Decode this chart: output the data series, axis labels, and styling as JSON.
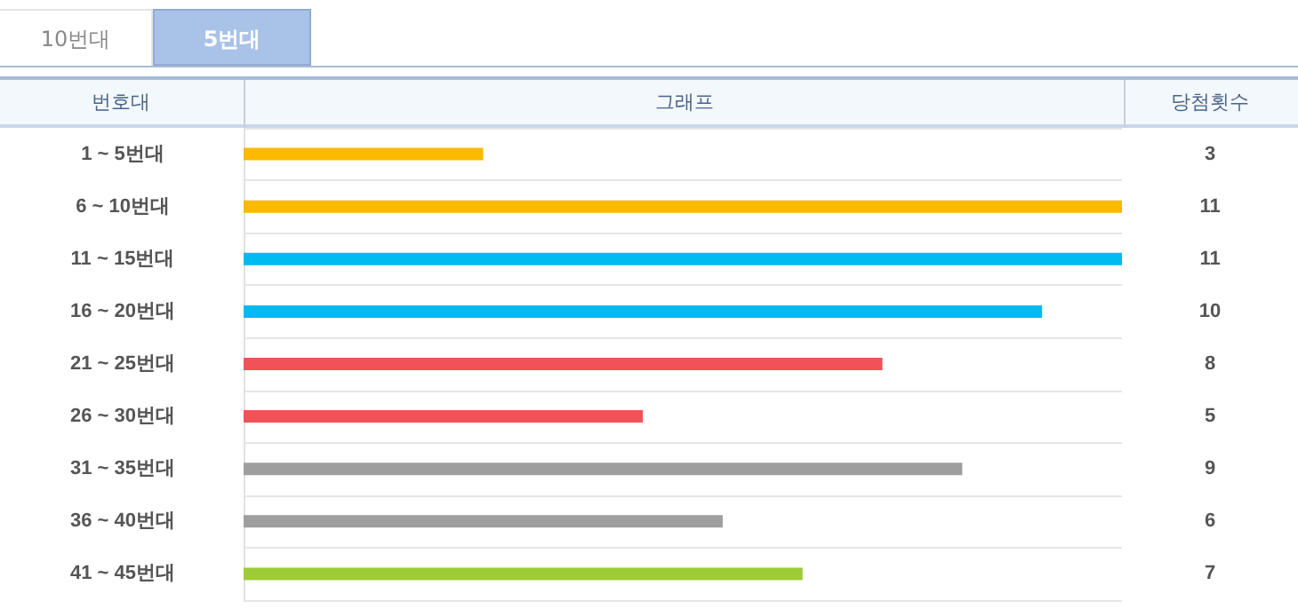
{
  "chart_data": {
    "type": "bar",
    "orientation": "horizontal",
    "title": "그래프",
    "ylabel": "번호대",
    "xlabel": "당첨횟수",
    "annotations": [
      "10번대",
      "5번대"
    ],
    "categories": [
      "1 ~ 5번대",
      "6 ~ 10번대",
      "11 ~ 15번대",
      "16 ~ 20번대",
      "21 ~ 25번대",
      "26 ~ 30번대",
      "31 ~ 35번대",
      "36 ~ 40번대",
      "41 ~ 45번대"
    ],
    "values": [
      3,
      11,
      11,
      10,
      8,
      5,
      9,
      6,
      7
    ],
    "colors": [
      "#fbb900",
      "#fbb900",
      "#00bbf0",
      "#00bbf0",
      "#f05258",
      "#f05258",
      "#9e9e9e",
      "#9e9e9e",
      "#9dcc36"
    ],
    "xlim": [
      0,
      11
    ],
    "data_labels": true,
    "grid": "y",
    "tick_labels": "y"
  }
}
